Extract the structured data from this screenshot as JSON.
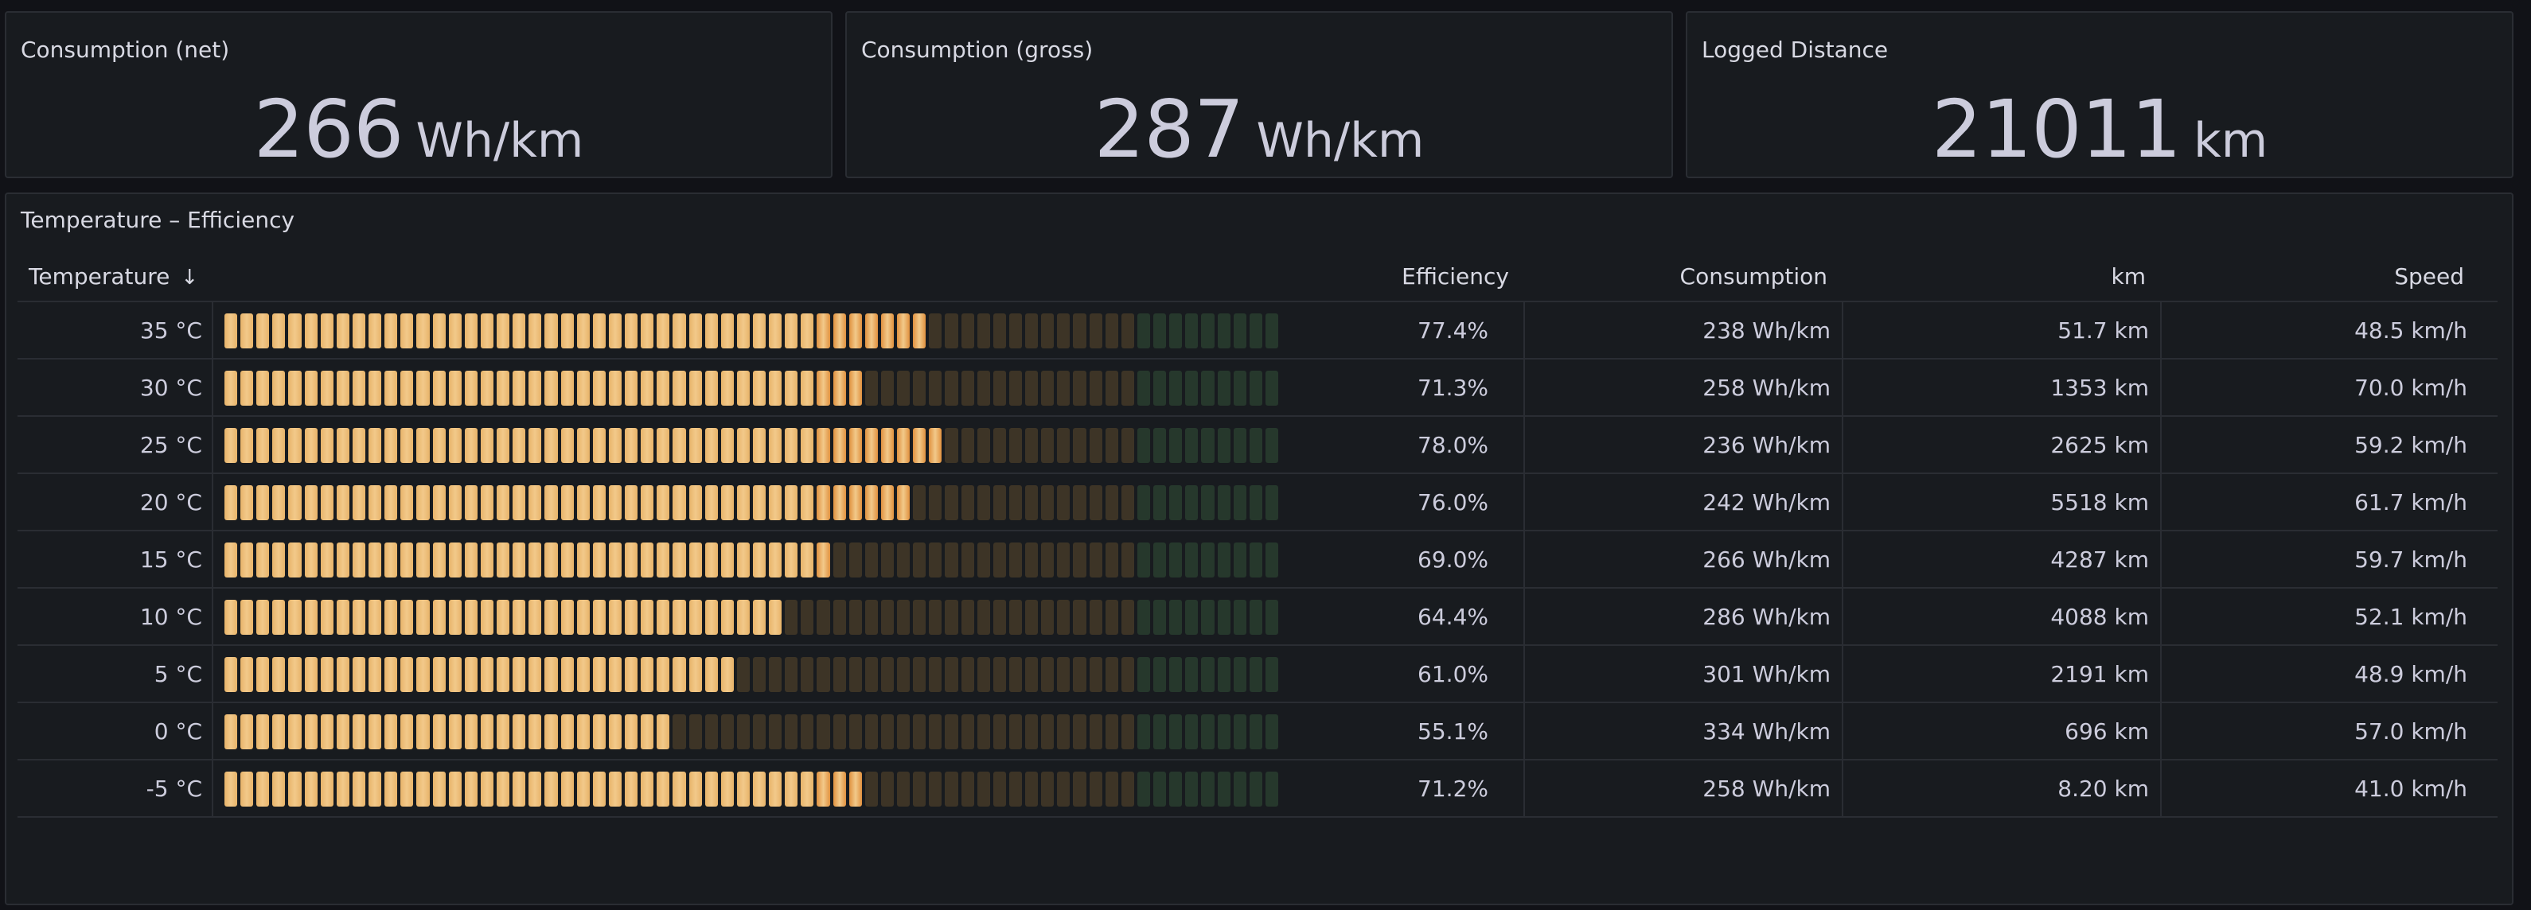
{
  "stats": [
    {
      "title": "Consumption (net)",
      "value": "266",
      "unit": "Wh/km"
    },
    {
      "title": "Consumption (gross)",
      "value": "287",
      "unit": "Wh/km"
    },
    {
      "title": "Logged Distance",
      "value": "21011",
      "unit": "km"
    }
  ],
  "table_panel": {
    "title": "Temperature – Efficiency",
    "headers": {
      "temperature": "Temperature",
      "efficiency": "Efficiency",
      "consumption": "Consumption",
      "km": "km",
      "speed": "Speed"
    },
    "sort_icon": "arrow-down-icon",
    "rows": [
      {
        "temperature": "35 °C",
        "efficiency": "77.4%",
        "efficiency_value": 0.774,
        "consumption": "238 Wh/km",
        "km": "51.7 km",
        "speed": "48.5 km/h"
      },
      {
        "temperature": "30 °C",
        "efficiency": "71.3%",
        "efficiency_value": 0.713,
        "consumption": "258 Wh/km",
        "km": "1353 km",
        "speed": "70.0 km/h"
      },
      {
        "temperature": "25 °C",
        "efficiency": "78.0%",
        "efficiency_value": 0.78,
        "consumption": "236 Wh/km",
        "km": "2625 km",
        "speed": "59.2 km/h"
      },
      {
        "temperature": "20 °C",
        "efficiency": "76.0%",
        "efficiency_value": 0.76,
        "consumption": "242 Wh/km",
        "km": "5518 km",
        "speed": "61.7 km/h"
      },
      {
        "temperature": "15 °C",
        "efficiency": "69.0%",
        "efficiency_value": 0.69,
        "consumption": "266 Wh/km",
        "km": "4287 km",
        "speed": "59.7 km/h"
      },
      {
        "temperature": "10 °C",
        "efficiency": "64.4%",
        "efficiency_value": 0.644,
        "consumption": "286 Wh/km",
        "km": "4088 km",
        "speed": "52.1 km/h"
      },
      {
        "temperature": "5 °C",
        "efficiency": "61.0%",
        "efficiency_value": 0.61,
        "consumption": "301 Wh/km",
        "km": "2191 km",
        "speed": "48.9 km/h"
      },
      {
        "temperature": "0 °C",
        "efficiency": "55.1%",
        "efficiency_value": 0.551,
        "consumption": "334 Wh/km",
        "km": "696 km",
        "speed": "57.0 km/h"
      },
      {
        "temperature": "-5 °C",
        "efficiency": "71.2%",
        "efficiency_value": 0.712,
        "consumption": "258 Wh/km",
        "km": "8.20 km",
        "speed": "41.0 km/h"
      }
    ]
  },
  "colors": {
    "bar_low": "#e8b46a",
    "bar_high": "#e0913f",
    "bar_empty_orange": "#3d3426",
    "bar_empty_green": "#26382c"
  }
}
